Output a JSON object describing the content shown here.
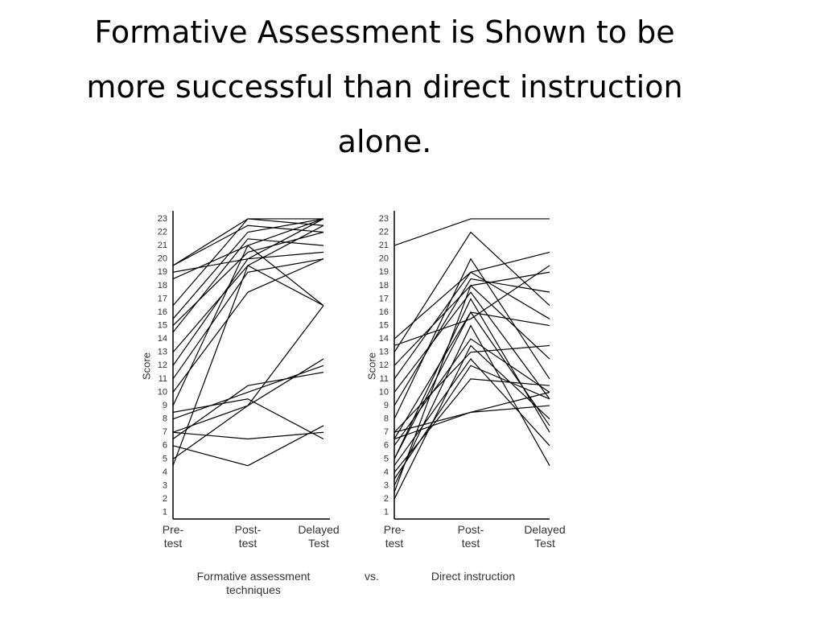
{
  "title": "Formative Assessment is Shown to be more successful than direct instruction alone.",
  "captions": [
    "Formative assessment\ntechniques",
    "vs.",
    "Direct instruction"
  ],
  "chart_data": [
    {
      "type": "line",
      "y_label": "Score",
      "categories": [
        "Pre-\ntest",
        "Post-\ntest",
        "Delayed\nTest"
      ],
      "color": "#000000",
      "ylim": [
        0.5,
        23.6
      ],
      "yticks": [
        1,
        2,
        3,
        4,
        5,
        6,
        7,
        8,
        9,
        10,
        11,
        12,
        13,
        14,
        15,
        16,
        17,
        18,
        19,
        20,
        21,
        22,
        23
      ],
      "series": [
        {
          "values": [
            19.5,
            23,
            23
          ]
        },
        {
          "values": [
            19.5,
            22.5,
            22
          ]
        },
        {
          "values": [
            19,
            20,
            20.5
          ]
        },
        {
          "values": [
            18.5,
            21,
            23
          ]
        },
        {
          "values": [
            16.5,
            23,
            22.5
          ]
        },
        {
          "values": [
            15.5,
            22,
            23
          ]
        },
        {
          "values": [
            15,
            20.5,
            22
          ]
        },
        {
          "values": [
            14.5,
            21.5,
            21
          ]
        },
        {
          "values": [
            13,
            19.5,
            22.5
          ]
        },
        {
          "values": [
            12,
            20,
            23
          ]
        },
        {
          "values": [
            11,
            19,
            20
          ]
        },
        {
          "values": [
            10,
            17.5,
            20
          ]
        },
        {
          "values": [
            9,
            21,
            16.5
          ]
        },
        {
          "values": [
            8.5,
            9.5,
            6.5
          ]
        },
        {
          "values": [
            8,
            10,
            12
          ]
        },
        {
          "values": [
            7,
            9,
            16.5
          ]
        },
        {
          "values": [
            7,
            6.5,
            7
          ]
        },
        {
          "values": [
            6.5,
            10.5,
            11.5
          ]
        },
        {
          "values": [
            6,
            4.5,
            7.5
          ]
        },
        {
          "values": [
            5,
            9,
            12.5
          ]
        },
        {
          "values": [
            4.5,
            19.5,
            16.5
          ]
        }
      ]
    },
    {
      "type": "line",
      "y_label": "Score",
      "categories": [
        "Pre-\ntest",
        "Post-\ntest",
        "Delayed\nTest"
      ],
      "color": "#000000",
      "ylim": [
        0.5,
        23.6
      ],
      "yticks": [
        1,
        2,
        3,
        4,
        5,
        6,
        7,
        8,
        9,
        10,
        11,
        12,
        13,
        14,
        15,
        16,
        17,
        18,
        19,
        20,
        21,
        22,
        23
      ],
      "series": [
        {
          "values": [
            21,
            23,
            23
          ]
        },
        {
          "values": [
            14,
            19,
            20.5
          ]
        },
        {
          "values": [
            13.5,
            15.5,
            19.5
          ]
        },
        {
          "values": [
            13,
            22,
            16.5
          ]
        },
        {
          "values": [
            12,
            18,
            19
          ]
        },
        {
          "values": [
            11,
            19,
            15.5
          ]
        },
        {
          "values": [
            10,
            17.5,
            9.5
          ]
        },
        {
          "values": [
            9,
            18.5,
            17.5
          ]
        },
        {
          "values": [
            8,
            20,
            11
          ]
        },
        {
          "values": [
            7,
            8.5,
            9
          ]
        },
        {
          "values": [
            7,
            13,
            13.5
          ]
        },
        {
          "values": [
            6.5,
            16,
            7.5
          ]
        },
        {
          "values": [
            6,
            14,
            10
          ]
        },
        {
          "values": [
            5,
            17,
            7
          ]
        },
        {
          "values": [
            4.5,
            12.5,
            6
          ]
        },
        {
          "values": [
            4,
            11,
            10.5
          ]
        },
        {
          "values": [
            3,
            15,
            4.5
          ]
        },
        {
          "values": [
            2.5,
            18,
            12.5
          ]
        },
        {
          "values": [
            2,
            13.5,
            8
          ]
        },
        {
          "values": [
            6.5,
            8.5,
            10
          ]
        },
        {
          "values": [
            5,
            16,
            15
          ]
        },
        {
          "values": [
            3.5,
            12,
            9.5
          ]
        }
      ]
    }
  ]
}
